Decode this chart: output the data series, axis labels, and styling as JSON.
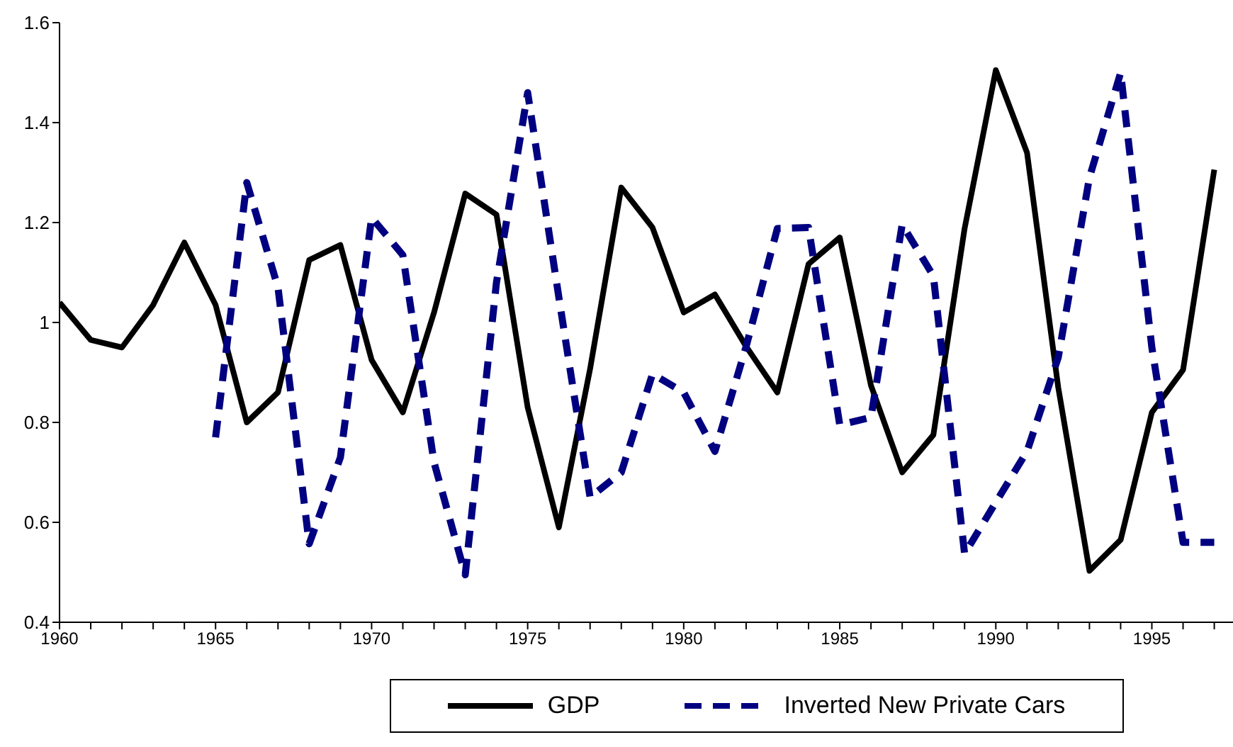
{
  "chart_data": {
    "type": "line",
    "x": [
      1960,
      1961,
      1962,
      1963,
      1964,
      1965,
      1966,
      1967,
      1968,
      1969,
      1970,
      1971,
      1972,
      1973,
      1974,
      1975,
      1976,
      1977,
      1978,
      1979,
      1980,
      1981,
      1982,
      1983,
      1984,
      1985,
      1986,
      1987,
      1988,
      1989,
      1990,
      1991,
      1992,
      1993,
      1994,
      1995,
      1996,
      1997
    ],
    "series": [
      {
        "name": "GDP",
        "color": "#000000",
        "line_style": "solid",
        "values": [
          1.04,
          0.965,
          0.95,
          1.035,
          1.16,
          1.035,
          0.8,
          0.86,
          1.125,
          1.155,
          0.925,
          0.82,
          1.02,
          1.258,
          1.216,
          0.83,
          0.59,
          0.907,
          1.27,
          1.19,
          1.02,
          1.056,
          0.952,
          0.86,
          1.117,
          1.17,
          0.874,
          0.7,
          0.775,
          1.188,
          1.505,
          1.34,
          0.87,
          0.503,
          0.565,
          0.82,
          0.905,
          1.306
        ]
      },
      {
        "name": "Inverted New Private Cars",
        "color": "#000080",
        "line_style": "dashed",
        "values": [
          null,
          null,
          null,
          null,
          null,
          0.77,
          1.28,
          1.07,
          0.557,
          0.73,
          1.21,
          1.135,
          0.72,
          0.495,
          1.08,
          1.46,
          1.05,
          0.65,
          0.7,
          0.897,
          0.86,
          0.742,
          0.952,
          1.188,
          1.19,
          0.795,
          0.81,
          1.196,
          1.093,
          0.537,
          0.64,
          0.742,
          0.93,
          1.29,
          1.5,
          0.95,
          0.56,
          0.56
        ]
      }
    ],
    "xlim": [
      1960,
      1997.6
    ],
    "xticks": [
      1960,
      {
        "value": 1961,
        "label": null
      },
      {
        "value": 1962,
        "label": null
      },
      {
        "value": 1963,
        "label": null
      },
      {
        "value": 1964,
        "label": null
      },
      1965,
      {
        "value": 1966,
        "label": null
      },
      {
        "value": 1967,
        "label": null
      },
      {
        "value": 1968,
        "label": null
      },
      {
        "value": 1969,
        "label": null
      },
      1970,
      {
        "value": 1971,
        "label": null
      },
      {
        "value": 1972,
        "label": null
      },
      {
        "value": 1973,
        "label": null
      },
      {
        "value": 1974,
        "label": null
      },
      1975,
      {
        "value": 1976,
        "label": null
      },
      {
        "value": 1977,
        "label": null
      },
      {
        "value": 1978,
        "label": null
      },
      {
        "value": 1979,
        "label": null
      },
      1980,
      {
        "value": 1981,
        "label": null
      },
      {
        "value": 1982,
        "label": null
      },
      {
        "value": 1983,
        "label": null
      },
      {
        "value": 1984,
        "label": null
      },
      1985,
      {
        "value": 1986,
        "label": null
      },
      {
        "value": 1987,
        "label": null
      },
      {
        "value": 1988,
        "label": null
      },
      {
        "value": 1989,
        "label": null
      },
      1990,
      {
        "value": 1991,
        "label": null
      },
      {
        "value": 1992,
        "label": null
      },
      {
        "value": 1993,
        "label": null
      },
      {
        "value": 1994,
        "label": null
      },
      1995,
      {
        "value": 1996,
        "label": null
      },
      {
        "value": 1997,
        "label": null
      }
    ],
    "ylim": [
      0.4,
      1.6
    ],
    "yticks": [
      0.4,
      0.6,
      0.8,
      1,
      1.2,
      1.4,
      1.6
    ],
    "grid": false,
    "legend": "bottom",
    "marker": "none"
  }
}
